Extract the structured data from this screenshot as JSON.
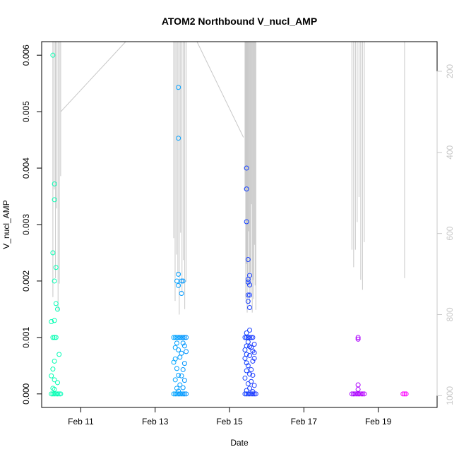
{
  "chart_data": {
    "type": "scatter",
    "title": "ATOM2 Northbound V_nucl_AMP",
    "xlabel": "Date",
    "ylabel": "V_nucl_AMP",
    "xlim": [
      "2010-02-09 22:45",
      "2010-02-20 14:00"
    ],
    "ylim": [
      -0.00024,
      0.00624
    ],
    "x_ticks": [
      {
        "label": "Feb 11",
        "date": "2010-02-11"
      },
      {
        "label": "Feb 13",
        "date": "2010-02-13"
      },
      {
        "label": "Feb 15",
        "date": "2010-02-15"
      },
      {
        "label": "Feb 17",
        "date": "2010-02-17"
      },
      {
        "label": "Feb 19",
        "date": "2010-02-19"
      }
    ],
    "y_ticks": [
      {
        "label": "0.000",
        "value": 0.0
      },
      {
        "label": "0.001",
        "value": 0.001
      },
      {
        "label": "0.002",
        "value": 0.002
      },
      {
        "label": "0.003",
        "value": 0.003
      },
      {
        "label": "0.004",
        "value": 0.004
      },
      {
        "label": "0.005",
        "value": 0.005
      },
      {
        "label": "0.006",
        "value": 0.006
      }
    ],
    "right_axis": {
      "reversed": true,
      "range": [
        127,
        1029
      ],
      "ticks": [
        {
          "label": "200",
          "value": 200
        },
        {
          "label": "400",
          "value": 400
        },
        {
          "label": "600",
          "value": 600
        },
        {
          "label": "800",
          "value": 800
        },
        {
          "label": "1000",
          "value": 1000
        }
      ],
      "color": "#c8c8c8"
    },
    "grid": false,
    "legend": "none",
    "colors": {
      "points_gradient": [
        "#00ffb0",
        "#00d8ff",
        "#0050ff",
        "#6a00ff",
        "#ff00ff"
      ],
      "depth_line": "#c8c8c8",
      "axis": "#000000"
    },
    "series": [
      {
        "points": [
          [
            "2010-02-10 06:00",
            0.006
          ],
          [
            "2010-02-10 07:00",
            0.00372
          ],
          [
            "2010-02-10 07:00",
            0.00344
          ],
          [
            "2010-02-10 06:00",
            0.0025
          ],
          [
            "2010-02-10 08:00",
            0.00224
          ],
          [
            "2010-02-10 07:00",
            0.002
          ],
          [
            "2010-02-10 08:00",
            0.0016
          ],
          [
            "2010-02-10 09:00",
            0.0015
          ],
          [
            "2010-02-10 07:00",
            0.0013
          ],
          [
            "2010-02-10 05:00",
            0.00128
          ],
          [
            "2010-02-10 06:00",
            0.001
          ],
          [
            "2010-02-10 07:00",
            0.001
          ],
          [
            "2010-02-10 08:00",
            0.001
          ],
          [
            "2010-02-10 10:00",
            0.0007
          ],
          [
            "2010-02-10 07:00",
            0.00058
          ],
          [
            "2010-02-10 06:00",
            0.00044
          ],
          [
            "2010-02-10 05:00",
            0.00032
          ],
          [
            "2010-02-10 07:00",
            0.00025
          ],
          [
            "2010-02-10 09:00",
            0.0002
          ],
          [
            "2010-02-10 06:00",
            0.0001
          ],
          [
            "2010-02-10 07:00",
            8e-05
          ],
          [
            "2010-02-10 05:00",
            0.0
          ],
          [
            "2010-02-10 06:00",
            0.0
          ],
          [
            "2010-02-10 07:00",
            0.0
          ],
          [
            "2010-02-10 08:00",
            0.0
          ],
          [
            "2010-02-10 09:00",
            0.0
          ],
          [
            "2010-02-10 10:00",
            0.0
          ],
          [
            "2010-02-10 11:00",
            0.0
          ],
          [
            "2010-02-13 15:00",
            0.00543
          ],
          [
            "2010-02-13 15:00",
            0.00453
          ],
          [
            "2010-02-13 15:00",
            0.00212
          ],
          [
            "2010-02-13 14:00",
            0.002
          ],
          [
            "2010-02-13 15:00",
            0.00192
          ],
          [
            "2010-02-13 17:00",
            0.002
          ],
          [
            "2010-02-13 18:00",
            0.002
          ],
          [
            "2010-02-13 17:00",
            0.00178
          ],
          [
            "2010-02-13 12:00",
            0.001
          ],
          [
            "2010-02-13 13:00",
            0.001
          ],
          [
            "2010-02-13 14:00",
            0.001
          ],
          [
            "2010-02-13 15:00",
            0.001
          ],
          [
            "2010-02-13 16:00",
            0.001
          ],
          [
            "2010-02-13 17:00",
            0.001
          ],
          [
            "2010-02-13 18:00",
            0.001
          ],
          [
            "2010-02-13 19:00",
            0.001
          ],
          [
            "2010-02-13 20:00",
            0.001
          ],
          [
            "2010-02-13 14:00",
            0.0009
          ],
          [
            "2010-02-13 18:00",
            0.0009
          ],
          [
            "2010-02-13 13:00",
            0.00082
          ],
          [
            "2010-02-13 19:00",
            0.00085
          ],
          [
            "2010-02-13 15:00",
            0.00078
          ],
          [
            "2010-02-13 17:00",
            0.00072
          ],
          [
            "2010-02-13 20:00",
            0.00075
          ],
          [
            "2010-02-13 13:00",
            0.00062
          ],
          [
            "2010-02-13 16:00",
            0.00065
          ],
          [
            "2010-02-13 12:00",
            0.00056
          ],
          [
            "2010-02-13 19:00",
            0.00054
          ],
          [
            "2010-02-13 14:00",
            0.00045
          ],
          [
            "2010-02-13 18:00",
            0.00043
          ],
          [
            "2010-02-13 15:00",
            0.00033
          ],
          [
            "2010-02-13 17:00",
            0.00032
          ],
          [
            "2010-02-13 13:00",
            0.00025
          ],
          [
            "2010-02-13 19:00",
            0.00024
          ],
          [
            "2010-02-13 16:00",
            0.00016
          ],
          [
            "2010-02-13 14:00",
            0.0001
          ],
          [
            "2010-02-13 18:00",
            0.00011
          ],
          [
            "2010-02-13 15:00",
            5e-05
          ],
          [
            "2010-02-13 12:00",
            0.0
          ],
          [
            "2010-02-13 13:00",
            0.0
          ],
          [
            "2010-02-13 14:00",
            0.0
          ],
          [
            "2010-02-13 15:00",
            0.0
          ],
          [
            "2010-02-13 16:00",
            0.0
          ],
          [
            "2010-02-13 17:00",
            0.0
          ],
          [
            "2010-02-13 18:00",
            0.0
          ],
          [
            "2010-02-13 19:00",
            0.0
          ],
          [
            "2010-02-13 20:00",
            0.0
          ],
          [
            "2010-02-15 11:00",
            0.004
          ],
          [
            "2010-02-15 11:00",
            0.00363
          ],
          [
            "2010-02-15 11:00",
            0.00305
          ],
          [
            "2010-02-15 12:00",
            0.00238
          ],
          [
            "2010-02-15 12:00",
            0.00203
          ],
          [
            "2010-02-15 13:00",
            0.0021
          ],
          [
            "2010-02-15 12:00",
            0.00198
          ],
          [
            "2010-02-15 13:00",
            0.00193
          ],
          [
            "2010-02-15 12:00",
            0.00175
          ],
          [
            "2010-02-15 13:00",
            0.00175
          ],
          [
            "2010-02-15 12:00",
            0.00164
          ],
          [
            "2010-02-15 13:00",
            0.00153
          ],
          [
            "2010-02-15 13:00",
            0.00113
          ],
          [
            "2010-02-15 11:00",
            0.00108
          ],
          [
            "2010-02-15 10:00",
            0.001
          ],
          [
            "2010-02-15 11:00",
            0.001
          ],
          [
            "2010-02-15 12:00",
            0.001
          ],
          [
            "2010-02-15 13:00",
            0.001
          ],
          [
            "2010-02-15 14:00",
            0.001
          ],
          [
            "2010-02-15 15:00",
            0.001
          ],
          [
            "2010-02-15 12:00",
            0.00092
          ],
          [
            "2010-02-15 16:00",
            0.00088
          ],
          [
            "2010-02-15 11:00",
            0.00085
          ],
          [
            "2010-02-15 13:00",
            0.00084
          ],
          [
            "2010-02-15 14:00",
            0.00082
          ],
          [
            "2010-02-15 10:00",
            0.00078
          ],
          [
            "2010-02-15 15:00",
            0.00076
          ],
          [
            "2010-02-15 16:00",
            0.00073
          ],
          [
            "2010-02-15 11:00",
            0.0007
          ],
          [
            "2010-02-15 13:00",
            0.00068
          ],
          [
            "2010-02-15 16:00",
            0.00063
          ],
          [
            "2010-02-15 10:00",
            0.00063
          ],
          [
            "2010-02-15 15:00",
            0.00058
          ],
          [
            "2010-02-15 11:00",
            0.00055
          ],
          [
            "2010-02-15 12:00",
            0.0005
          ],
          [
            "2010-02-15 14:00",
            0.00043
          ],
          [
            "2010-02-15 11:00",
            0.00041
          ],
          [
            "2010-02-15 13:00",
            0.00035
          ],
          [
            "2010-02-15 15:00",
            0.00033
          ],
          [
            "2010-02-15 10:00",
            0.00028
          ],
          [
            "2010-02-15 14:00",
            0.00022
          ],
          [
            "2010-02-15 12:00",
            0.00018
          ],
          [
            "2010-02-15 16:00",
            0.00015
          ],
          [
            "2010-02-15 13:00",
            0.0001
          ],
          [
            "2010-02-15 11:00",
            6e-05
          ],
          [
            "2010-02-15 15:00",
            4e-05
          ],
          [
            "2010-02-15 10:00",
            0.0
          ],
          [
            "2010-02-15 11:00",
            0.0
          ],
          [
            "2010-02-15 12:00",
            0.0
          ],
          [
            "2010-02-15 13:00",
            0.0
          ],
          [
            "2010-02-15 14:00",
            0.0
          ],
          [
            "2010-02-15 15:00",
            0.0
          ],
          [
            "2010-02-15 16:00",
            0.0
          ],
          [
            "2010-02-15 17:00",
            0.0
          ],
          [
            "2010-02-18 11:00",
            0.001
          ],
          [
            "2010-02-18 11:00",
            0.00097
          ],
          [
            "2010-02-18 11:00",
            0.00016
          ],
          [
            "2010-02-18 11:00",
            8e-05
          ],
          [
            "2010-02-18 07:00",
            0.0
          ],
          [
            "2010-02-18 08:00",
            0.0
          ],
          [
            "2010-02-18 09:00",
            0.0
          ],
          [
            "2010-02-18 10:00",
            0.0
          ],
          [
            "2010-02-18 11:00",
            0.0
          ],
          [
            "2010-02-18 12:00",
            0.0
          ],
          [
            "2010-02-18 13:00",
            0.0
          ],
          [
            "2010-02-18 14:00",
            0.0
          ],
          [
            "2010-02-18 15:00",
            0.0
          ],
          [
            "2010-02-19 16:00",
            0.0
          ],
          [
            "2010-02-19 17:00",
            0.0
          ],
          [
            "2010-02-19 18:00",
            0.0
          ]
        ]
      }
    ],
    "depth_trace": {
      "axis": "right",
      "bursts": [
        {
          "x_range": [
            "2010-02-10 06:00",
            "2010-02-10 11:00"
          ],
          "top": 127,
          "bottom_max": 790,
          "lines": 7
        },
        {
          "x_range": [
            "2010-02-13 12:00",
            "2010-02-13 20:00"
          ],
          "top": 127,
          "bottom_max": 800,
          "lines": 10
        },
        {
          "x_range": [
            "2010-02-15 10:00",
            "2010-02-15 17:00"
          ],
          "top": 127,
          "bottom_max": 795,
          "lines": 16
        },
        {
          "x_range": [
            "2010-02-18 07:00",
            "2010-02-18 15:00"
          ],
          "top": 127,
          "bottom_max": 745,
          "lines": 8
        },
        {
          "x_range": [
            "2010-02-19 17:00",
            "2010-02-19 17:00"
          ],
          "top": 127,
          "bottom_max": 710,
          "lines": 1
        }
      ],
      "connectors": [
        [
          [
            "2010-02-10 11:00",
            300
          ],
          [
            "2010-02-12 05:00",
            127
          ]
        ],
        [
          [
            "2010-02-14 03:00",
            127
          ],
          [
            "2010-02-15 09:00",
            363
          ]
        ]
      ]
    }
  }
}
